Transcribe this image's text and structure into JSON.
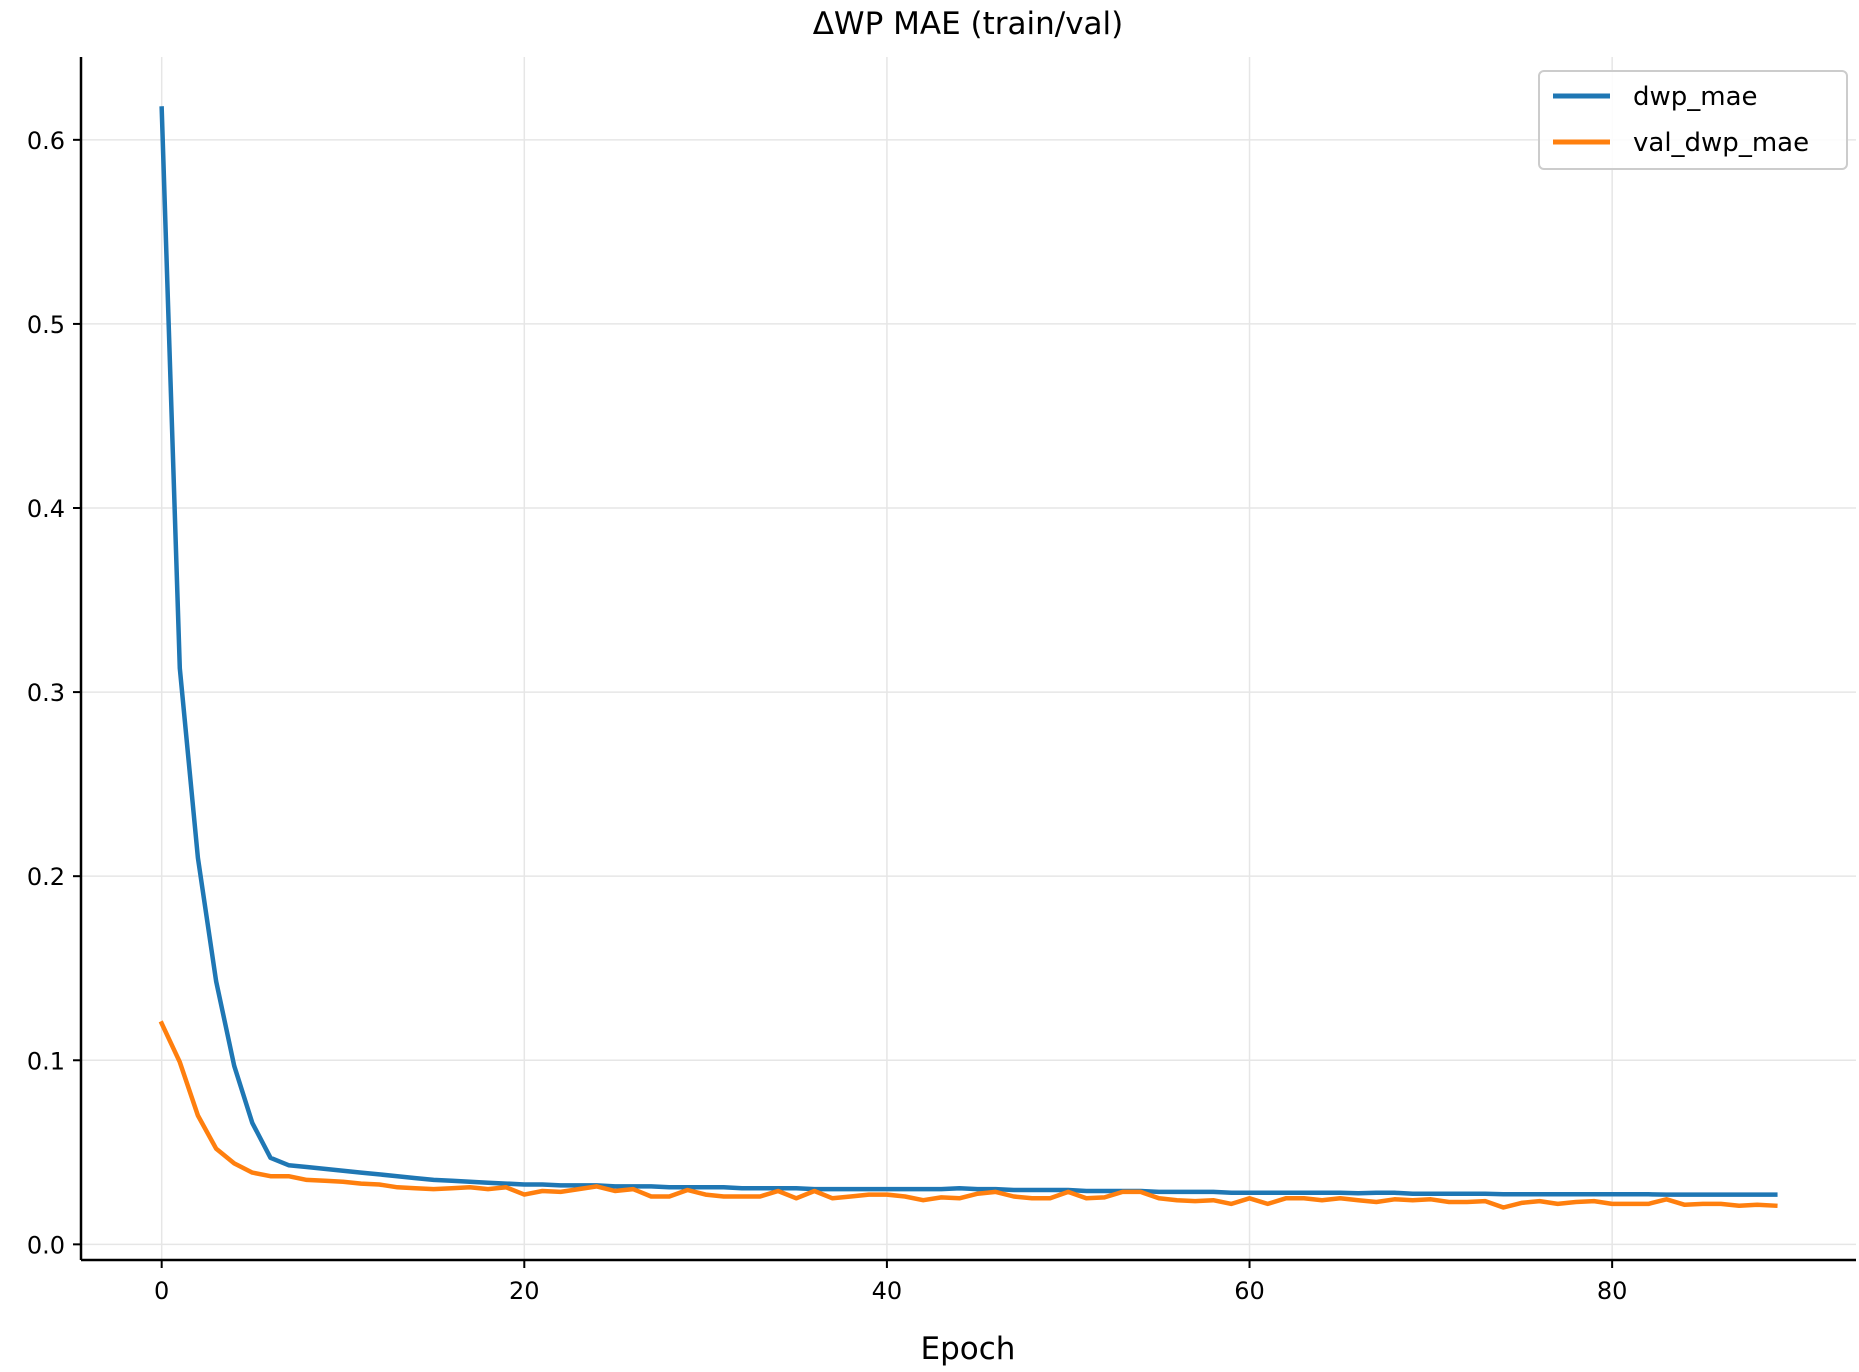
{
  "chart_data": {
    "type": "line",
    "title": "ΔWP MAE (train/val)",
    "xlabel": "Epoch",
    "ylabel": "",
    "xlim": [
      -4.45,
      93.45
    ],
    "ylim": [
      -0.0085,
      0.645
    ],
    "xticks": [
      0,
      20,
      40,
      60,
      80
    ],
    "yticks": [
      0.0,
      0.1,
      0.2,
      0.3,
      0.4,
      0.5,
      0.6
    ],
    "xtick_labels": [
      "0",
      "20",
      "40",
      "60",
      "80"
    ],
    "ytick_labels": [
      "0.0",
      "0.1",
      "0.2",
      "0.3",
      "0.4",
      "0.5",
      "0.6"
    ],
    "grid": true,
    "legend_position": "top-right",
    "x": [
      0,
      1,
      2,
      3,
      4,
      5,
      6,
      7,
      8,
      9,
      10,
      11,
      12,
      13,
      14,
      15,
      16,
      17,
      18,
      19,
      20,
      21,
      22,
      23,
      24,
      25,
      26,
      27,
      28,
      29,
      30,
      31,
      32,
      33,
      34,
      35,
      36,
      37,
      38,
      39,
      40,
      41,
      42,
      43,
      44,
      45,
      46,
      47,
      48,
      49,
      50,
      51,
      52,
      53,
      54,
      55,
      56,
      57,
      58,
      59,
      60,
      61,
      62,
      63,
      64,
      65,
      66,
      67,
      68,
      69,
      70,
      71,
      72,
      73,
      74,
      75,
      76,
      77,
      78,
      79,
      80,
      81,
      82,
      83,
      84,
      85,
      86,
      87,
      88,
      89
    ],
    "series": [
      {
        "name": "dwp_mae",
        "color": "#1f77b4",
        "values": [
          0.617,
          0.313,
          0.21,
          0.143,
          0.097,
          0.066,
          0.047,
          0.043,
          0.042,
          0.041,
          0.04,
          0.039,
          0.038,
          0.037,
          0.036,
          0.035,
          0.0345,
          0.034,
          0.0335,
          0.033,
          0.0325,
          0.0325,
          0.032,
          0.032,
          0.032,
          0.0315,
          0.0315,
          0.0315,
          0.031,
          0.031,
          0.031,
          0.031,
          0.0305,
          0.0305,
          0.0305,
          0.0305,
          0.03,
          0.03,
          0.03,
          0.03,
          0.03,
          0.03,
          0.03,
          0.03,
          0.0305,
          0.03,
          0.03,
          0.0295,
          0.0295,
          0.0295,
          0.0295,
          0.029,
          0.029,
          0.029,
          0.029,
          0.0285,
          0.0285,
          0.0285,
          0.0285,
          0.028,
          0.028,
          0.028,
          0.028,
          0.028,
          0.028,
          0.028,
          0.0278,
          0.028,
          0.028,
          0.0275,
          0.0275,
          0.0275,
          0.0275,
          0.0275,
          0.0272,
          0.0272,
          0.0272,
          0.0272,
          0.0272,
          0.0272,
          0.0272,
          0.0272,
          0.0272,
          0.027,
          0.027,
          0.027,
          0.027,
          0.027,
          0.027,
          0.027
        ]
      },
      {
        "name": "val_dwp_mae",
        "color": "#ff7f0e",
        "values": [
          0.12,
          0.099,
          0.07,
          0.052,
          0.044,
          0.039,
          0.037,
          0.037,
          0.035,
          0.0345,
          0.034,
          0.033,
          0.0325,
          0.031,
          0.0305,
          0.03,
          0.0305,
          0.031,
          0.03,
          0.031,
          0.027,
          0.029,
          0.0285,
          0.03,
          0.0315,
          0.029,
          0.03,
          0.026,
          0.026,
          0.0295,
          0.027,
          0.026,
          0.026,
          0.026,
          0.029,
          0.025,
          0.029,
          0.025,
          0.026,
          0.027,
          0.027,
          0.026,
          0.024,
          0.0255,
          0.025,
          0.0275,
          0.0285,
          0.026,
          0.025,
          0.025,
          0.0285,
          0.025,
          0.0255,
          0.0285,
          0.0285,
          0.025,
          0.024,
          0.0235,
          0.024,
          0.022,
          0.025,
          0.022,
          0.025,
          0.025,
          0.024,
          0.025,
          0.024,
          0.023,
          0.0245,
          0.024,
          0.0245,
          0.023,
          0.023,
          0.0235,
          0.02,
          0.0225,
          0.0235,
          0.022,
          0.023,
          0.0235,
          0.022,
          0.022,
          0.022,
          0.0245,
          0.0215,
          0.022,
          0.022,
          0.021,
          0.0215,
          0.021
        ]
      }
    ]
  }
}
